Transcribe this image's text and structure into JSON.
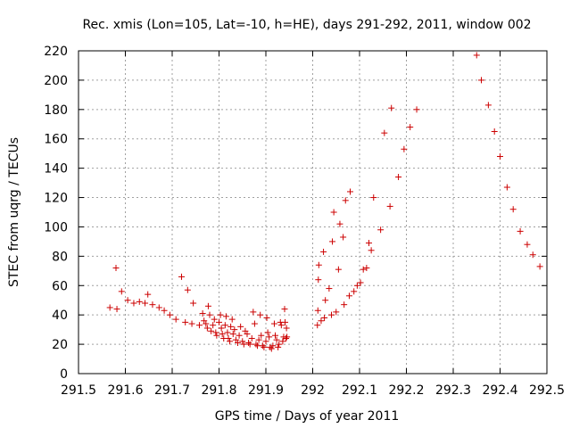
{
  "chart_data": {
    "type": "scatter",
    "title": "Rec. xmis (Lon=105, Lat=-10, h=HE), days 291-292, 2011, window 002",
    "xlabel": "GPS time / Days of year 2011",
    "ylabel": "STEC from uqrg / TECUs",
    "xlim": [
      291.5,
      292.5
    ],
    "ylim": [
      0,
      220
    ],
    "x_ticks": [
      "291.5",
      "291.6",
      "291.7",
      "291.8",
      "291.9",
      "292",
      "292.1",
      "292.2",
      "292.3",
      "292.4",
      "292.5"
    ],
    "y_ticks": [
      "0",
      "20",
      "40",
      "60",
      "80",
      "100",
      "120",
      "140",
      "160",
      "180",
      "200",
      "220"
    ],
    "grid": true,
    "marker": "+",
    "color": "#cc0000",
    "series": [
      {
        "points": [
          [
            291.567,
            45
          ],
          [
            291.58,
            72
          ],
          [
            291.582,
            44
          ],
          [
            291.592,
            56
          ],
          [
            291.605,
            50
          ],
          [
            291.618,
            48
          ],
          [
            291.63,
            49
          ],
          [
            291.642,
            48
          ],
          [
            291.648,
            54
          ],
          [
            291.658,
            47
          ],
          [
            291.672,
            45
          ],
          [
            291.683,
            43
          ],
          [
            291.695,
            40
          ],
          [
            291.708,
            37
          ],
          [
            291.72,
            66
          ],
          [
            291.728,
            35
          ],
          [
            291.733,
            57
          ],
          [
            291.742,
            34
          ],
          [
            291.745,
            48
          ],
          [
            291.758,
            33
          ],
          [
            291.765,
            41
          ],
          [
            291.768,
            36
          ],
          [
            291.772,
            34
          ],
          [
            291.775,
            31
          ],
          [
            291.777,
            46
          ],
          [
            291.78,
            40
          ],
          [
            291.783,
            29
          ],
          [
            291.787,
            33
          ],
          [
            291.79,
            37
          ],
          [
            291.793,
            28
          ],
          [
            291.795,
            26
          ],
          [
            291.8,
            35
          ],
          [
            291.803,
            40
          ],
          [
            291.805,
            31
          ],
          [
            291.807,
            27
          ],
          [
            291.81,
            24
          ],
          [
            291.813,
            33
          ],
          [
            291.815,
            39
          ],
          [
            291.818,
            28
          ],
          [
            291.82,
            24
          ],
          [
            291.823,
            22
          ],
          [
            291.825,
            32
          ],
          [
            291.828,
            37
          ],
          [
            291.83,
            27
          ],
          [
            291.833,
            30
          ],
          [
            291.836,
            23
          ],
          [
            291.84,
            21
          ],
          [
            291.843,
            26
          ],
          [
            291.846,
            32
          ],
          [
            291.85,
            22
          ],
          [
            291.853,
            20
          ],
          [
            291.856,
            29
          ],
          [
            291.86,
            27
          ],
          [
            291.863,
            21
          ],
          [
            291.866,
            20
          ],
          [
            291.87,
            24
          ],
          [
            291.873,
            42
          ],
          [
            291.876,
            34
          ],
          [
            291.879,
            20
          ],
          [
            291.882,
            19
          ],
          [
            291.885,
            23
          ],
          [
            291.888,
            40
          ],
          [
            291.89,
            26
          ],
          [
            291.893,
            19
          ],
          [
            291.896,
            18
          ],
          [
            291.9,
            22
          ],
          [
            291.902,
            38
          ],
          [
            291.904,
            28
          ],
          [
            291.907,
            25
          ],
          [
            291.909,
            18
          ],
          [
            291.912,
            17
          ],
          [
            291.915,
            19
          ],
          [
            291.918,
            34
          ],
          [
            291.92,
            26
          ],
          [
            291.923,
            23
          ],
          [
            291.926,
            18
          ],
          [
            291.928,
            20
          ],
          [
            291.931,
            35
          ],
          [
            291.933,
            33
          ],
          [
            291.936,
            22
          ],
          [
            291.938,
            25
          ],
          [
            291.94,
            44
          ],
          [
            291.941,
            35
          ],
          [
            291.943,
            24
          ],
          [
            291.944,
            31
          ],
          [
            291.945,
            25
          ],
          [
            292.01,
            33
          ],
          [
            292.011,
            43
          ],
          [
            292.012,
            64
          ],
          [
            292.013,
            74
          ],
          [
            292.018,
            36
          ],
          [
            292.023,
            83
          ],
          [
            292.025,
            38
          ],
          [
            292.027,
            50
          ],
          [
            292.035,
            58
          ],
          [
            292.04,
            40
          ],
          [
            292.042,
            90
          ],
          [
            292.045,
            110
          ],
          [
            292.05,
            42
          ],
          [
            292.055,
            71
          ],
          [
            292.058,
            102
          ],
          [
            292.065,
            93
          ],
          [
            292.067,
            47
          ],
          [
            292.07,
            118
          ],
          [
            292.078,
            53
          ],
          [
            292.08,
            124
          ],
          [
            292.088,
            56
          ],
          [
            292.095,
            60
          ],
          [
            292.102,
            62
          ],
          [
            292.108,
            71
          ],
          [
            292.115,
            72
          ],
          [
            292.12,
            89
          ],
          [
            292.125,
            84
          ],
          [
            292.13,
            120
          ],
          [
            292.145,
            98
          ],
          [
            292.153,
            164
          ],
          [
            292.165,
            114
          ],
          [
            292.168,
            181
          ],
          [
            292.183,
            134
          ],
          [
            292.195,
            153
          ],
          [
            292.208,
            168
          ],
          [
            292.222,
            180
          ],
          [
            292.35,
            217
          ],
          [
            292.36,
            200
          ],
          [
            292.375,
            183
          ],
          [
            292.388,
            165
          ],
          [
            292.4,
            148
          ],
          [
            292.415,
            127
          ],
          [
            292.428,
            112
          ],
          [
            292.443,
            97
          ],
          [
            292.458,
            88
          ],
          [
            292.47,
            81
          ],
          [
            292.485,
            73
          ]
        ]
      }
    ]
  }
}
